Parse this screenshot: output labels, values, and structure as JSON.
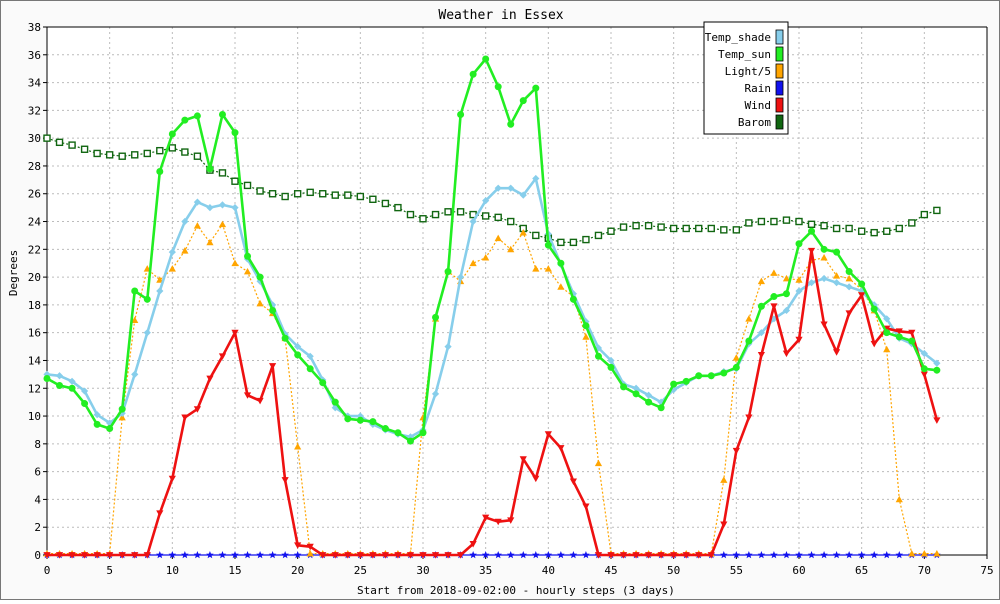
{
  "chart_data": {
    "type": "line",
    "title": "Weather in Essex",
    "xlabel": "Start from 2018-09-02:00 - hourly steps (3 days)",
    "ylabel": "Degrees",
    "xlim": [
      0,
      75
    ],
    "ylim": [
      0,
      38
    ],
    "xticks": [
      0,
      5,
      10,
      15,
      20,
      25,
      30,
      35,
      40,
      45,
      50,
      55,
      60,
      65,
      70,
      75
    ],
    "yticks": [
      0,
      2,
      4,
      6,
      8,
      10,
      12,
      14,
      16,
      18,
      20,
      22,
      24,
      26,
      28,
      30,
      32,
      34,
      36,
      38
    ],
    "grid": true,
    "legend_position": "top-right",
    "x": [
      0,
      1,
      2,
      3,
      4,
      5,
      6,
      7,
      8,
      9,
      10,
      11,
      12,
      13,
      14,
      15,
      16,
      17,
      18,
      19,
      20,
      21,
      22,
      23,
      24,
      25,
      26,
      27,
      28,
      29,
      30,
      31,
      32,
      33,
      34,
      35,
      36,
      37,
      38,
      39,
      40,
      41,
      42,
      43,
      44,
      45,
      46,
      47,
      48,
      49,
      50,
      51,
      52,
      53,
      54,
      55,
      56,
      57,
      58,
      59,
      60,
      61,
      62,
      63,
      64,
      65,
      66,
      67,
      68,
      69,
      70,
      71
    ],
    "series": [
      {
        "name": "Temp_shade",
        "color": "#87ceeb",
        "marker": "diamond",
        "line": "solid-thick",
        "values": [
          13.0,
          12.9,
          12.5,
          11.8,
          10.1,
          9.5,
          10.2,
          13.0,
          16.0,
          19.0,
          21.8,
          24.0,
          25.4,
          25.0,
          25.2,
          25.0,
          21.3,
          19.7,
          18.0,
          15.9,
          15.0,
          14.3,
          12.6,
          10.6,
          10.0,
          10.0,
          9.4,
          9.0,
          8.7,
          8.5,
          9.0,
          11.6,
          15.0,
          20.0,
          24.0,
          25.5,
          26.4,
          26.4,
          25.9,
          27.1,
          23.1,
          20.9,
          18.8,
          16.8,
          14.9,
          14.0,
          12.3,
          12.0,
          11.5,
          11.0,
          11.9,
          12.4,
          12.9,
          12.9,
          13.2,
          13.4,
          15.2,
          16.0,
          17.0,
          17.6,
          19.0,
          19.6,
          19.9,
          19.6,
          19.3,
          19.0,
          18.0,
          17.0,
          15.6,
          15.2,
          14.5,
          13.8
        ]
      },
      {
        "name": "Temp_sun",
        "color": "#22ee22",
        "marker": "circle",
        "line": "solid-thick",
        "values": [
          12.7,
          12.2,
          12.0,
          10.9,
          9.4,
          9.1,
          10.5,
          19.0,
          18.4,
          27.6,
          30.3,
          31.3,
          31.6,
          27.8,
          31.7,
          30.4,
          21.5,
          20.0,
          17.6,
          15.6,
          14.4,
          13.4,
          12.4,
          11.0,
          9.8,
          9.7,
          9.6,
          9.1,
          8.8,
          8.2,
          8.8,
          17.1,
          20.4,
          31.7,
          34.6,
          35.7,
          33.7,
          31.0,
          32.7,
          33.6,
          22.3,
          21.0,
          18.4,
          16.5,
          14.3,
          13.5,
          12.1,
          11.6,
          11.0,
          10.6,
          12.3,
          12.5,
          12.9,
          12.9,
          13.1,
          13.5,
          15.4,
          17.9,
          18.6,
          18.8,
          22.4,
          23.3,
          22.0,
          21.8,
          20.4,
          19.5,
          17.7,
          16.0,
          15.7,
          15.4,
          13.4,
          13.3
        ]
      },
      {
        "name": "Light/5",
        "color": "#ffa500",
        "marker": "triangle",
        "line": "dotted",
        "values": [
          0.1,
          0.1,
          0.1,
          0.1,
          0.1,
          0.1,
          9.9,
          16.9,
          20.6,
          19.8,
          20.6,
          21.9,
          23.7,
          22.5,
          23.8,
          21.0,
          20.4,
          18.1,
          17.4,
          15.6,
          7.8,
          0.1,
          0.1,
          0.1,
          0.1,
          0.1,
          0.1,
          0.1,
          0.1,
          0.1,
          9.9,
          17.0,
          20.4,
          19.7,
          21.0,
          21.4,
          22.8,
          22.0,
          23.2,
          20.6,
          20.6,
          19.3,
          18.6,
          15.7,
          6.6,
          0.1,
          0.1,
          0.1,
          0.1,
          0.1,
          0.1,
          0.1,
          0.1,
          0.1,
          5.4,
          14.2,
          17.0,
          19.7,
          20.3,
          19.9,
          19.8,
          21.2,
          21.4,
          20.1,
          19.9,
          19.1,
          17.6,
          14.8,
          4.0,
          0.1,
          0.1,
          0.1
        ]
      },
      {
        "name": "Rain",
        "color": "#1111ee",
        "marker": "star",
        "line": "solid",
        "values": [
          0,
          0,
          0,
          0,
          0,
          0,
          0,
          0,
          0,
          0,
          0,
          0,
          0,
          0,
          0,
          0,
          0,
          0,
          0,
          0,
          0,
          0,
          0,
          0,
          0,
          0,
          0,
          0,
          0,
          0,
          0,
          0,
          0,
          0,
          0,
          0,
          0,
          0,
          0,
          0,
          0,
          0,
          0,
          0,
          0,
          0,
          0,
          0,
          0,
          0,
          0,
          0,
          0,
          0,
          0,
          0,
          0,
          0,
          0,
          0,
          0,
          0,
          0,
          0,
          0,
          0,
          0,
          0,
          0,
          0,
          0,
          0
        ]
      },
      {
        "name": "Wind",
        "color": "#ee1111",
        "marker": "triangle-down",
        "line": "solid-thick",
        "values": [
          0,
          0,
          0,
          0,
          0,
          0,
          0,
          0,
          0,
          3.0,
          5.5,
          9.9,
          10.5,
          12.7,
          14.3,
          16.0,
          11.5,
          11.1,
          13.6,
          5.4,
          0.7,
          0.6,
          0,
          0,
          0,
          0,
          0,
          0,
          0,
          0,
          0,
          0,
          0,
          0,
          0.8,
          2.7,
          2.4,
          2.5,
          6.9,
          5.5,
          8.7,
          7.7,
          5.3,
          3.5,
          0,
          0,
          0,
          0,
          0,
          0,
          0,
          0,
          0,
          0,
          2.2,
          7.5,
          9.9,
          14.4,
          17.9,
          14.5,
          15.5,
          21.9,
          16.6,
          14.6,
          17.4,
          18.7,
          15.2,
          16.3,
          16.1,
          16.0,
          13.0,
          9.7
        ]
      },
      {
        "name": "Barom",
        "color": "#116611",
        "marker": "square",
        "line": "dotted",
        "values": [
          30.0,
          29.7,
          29.5,
          29.2,
          28.9,
          28.8,
          28.7,
          28.8,
          28.9,
          29.1,
          29.3,
          29.0,
          28.7,
          27.7,
          27.5,
          26.9,
          26.6,
          26.2,
          26.0,
          25.8,
          26.0,
          26.1,
          26.0,
          25.9,
          25.9,
          25.8,
          25.6,
          25.3,
          25.0,
          24.5,
          24.2,
          24.5,
          24.7,
          24.7,
          24.5,
          24.4,
          24.3,
          24.0,
          23.5,
          23.0,
          22.8,
          22.5,
          22.5,
          22.7,
          23.0,
          23.3,
          23.6,
          23.7,
          23.7,
          23.6,
          23.5,
          23.5,
          23.5,
          23.5,
          23.4,
          23.4,
          23.9,
          24.0,
          24.0,
          24.1,
          24.0,
          23.8,
          23.7,
          23.5,
          23.5,
          23.3,
          23.2,
          23.3,
          23.5,
          23.9,
          24.5,
          24.8
        ]
      }
    ]
  }
}
